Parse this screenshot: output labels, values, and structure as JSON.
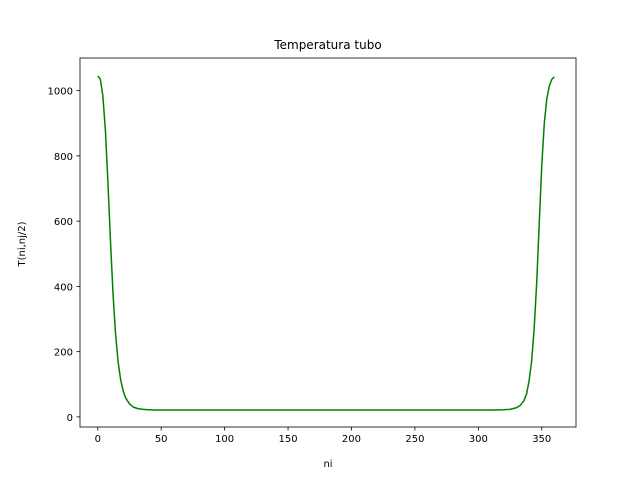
{
  "chart_data": {
    "type": "line",
    "title": "Temperatura tubo",
    "xlabel": "ni",
    "ylabel": "T(ni,nj/2)",
    "xlim": [
      -14,
      377
    ],
    "ylim": [
      -31,
      1100
    ],
    "xticks": [
      0,
      50,
      100,
      150,
      200,
      250,
      300,
      350
    ],
    "yticks": [
      0,
      200,
      400,
      600,
      800,
      1000
    ],
    "grid": false,
    "legend": "none",
    "series": [
      {
        "color": "#008000",
        "x": [
          0,
          2,
          4,
          6,
          8,
          10,
          12,
          14,
          16,
          18,
          20,
          22,
          25,
          28,
          32,
          36,
          40,
          45,
          50,
          60,
          80,
          100,
          150,
          200,
          250,
          300,
          310,
          320,
          325,
          330,
          333,
          336,
          338,
          340,
          342,
          344,
          346,
          348,
          350,
          352,
          354,
          356,
          358,
          360
        ],
        "y": [
          1045,
          1035,
          985,
          880,
          720,
          540,
          380,
          255,
          170,
          115,
          80,
          58,
          40,
          30,
          25,
          23,
          22,
          21,
          21,
          21,
          21,
          21,
          21,
          21,
          21,
          21,
          21,
          22,
          23,
          28,
          35,
          50,
          70,
          110,
          170,
          270,
          410,
          590,
          770,
          900,
          975,
          1015,
          1035,
          1042
        ]
      }
    ]
  }
}
